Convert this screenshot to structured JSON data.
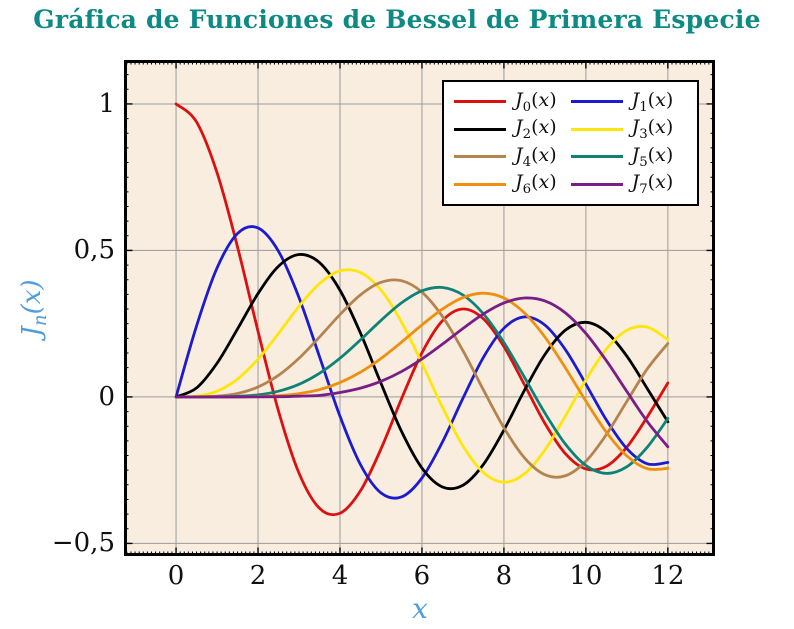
{
  "page": {
    "title": "Gráfica de Funciones de Bessel de Primera Especie"
  },
  "style": {
    "title_color": "#0E8A84",
    "axis_label_color": "#4F9EDC",
    "plot_bg": "#F8EDDF",
    "grid_color": "#9B9B9B",
    "tick_color": "#000000",
    "border_color": "#000000",
    "tick_label_color": "#111111",
    "legend_bg": "#FFFFFF",
    "legend_border": "#000000"
  },
  "chart_data": {
    "type": "line",
    "title": "Gráfica de Funciones de Bessel de Primera Especie",
    "xlabel": "x",
    "ylabel": "J_n(x)",
    "ylabel_parts": {
      "func": "J",
      "sub": "n",
      "lp": "(",
      "var": "x",
      "rp": ")"
    },
    "xlim": [
      -1.27,
      13.15
    ],
    "ylim": [
      -0.543,
      1.15
    ],
    "grid": "major",
    "legend_position": "top-right",
    "x_major_ticks": {
      "values": [
        0,
        2,
        4,
        6,
        8,
        10,
        12
      ],
      "labels": [
        "0",
        "2",
        "4",
        "6",
        "8",
        "10",
        "12"
      ]
    },
    "y_major_ticks": {
      "values": [
        1,
        0.5,
        0,
        -0.5
      ],
      "labels": [
        "1",
        "0,5",
        "0",
        "−0,5"
      ]
    },
    "x_minor_step": 0.1,
    "y_minor_step": 0.05,
    "x": [
      0,
      0.5,
      1,
      1.5,
      2,
      2.5,
      3,
      3.5,
      4,
      4.5,
      5,
      5.5,
      6,
      6.5,
      7,
      7.5,
      8,
      8.5,
      9,
      9.5,
      10,
      10.5,
      11,
      11.5,
      12
    ],
    "series": [
      {
        "name": "J0(x)",
        "label_parts": {
          "func": "J",
          "sub": "0",
          "lp": "(",
          "var": "x",
          "rp": ")"
        },
        "color": "#DC1010",
        "values": [
          1,
          0.9385,
          0.7652,
          0.5118,
          0.2239,
          -0.0484,
          -0.2601,
          -0.3801,
          -0.3971,
          -0.3205,
          -0.1776,
          -0.0068,
          0.1506,
          0.2601,
          0.3001,
          0.2663,
          0.1717,
          0.0419,
          -0.0903,
          -0.1939,
          -0.2459,
          -0.2366,
          -0.1712,
          -0.0677,
          0.0477
        ]
      },
      {
        "name": "J1(x)",
        "label_parts": {
          "func": "J",
          "sub": "1",
          "lp": "(",
          "var": "x",
          "rp": ")"
        },
        "color": "#1C1CCE",
        "values": [
          0,
          0.2423,
          0.4401,
          0.5579,
          0.5767,
          0.4971,
          0.3391,
          0.1374,
          -0.066,
          -0.2311,
          -0.3276,
          -0.3414,
          -0.2767,
          -0.1538,
          -0.0047,
          0.1352,
          0.2346,
          0.2731,
          0.2453,
          0.1613,
          0.0435,
          -0.0789,
          -0.1768,
          -0.2284,
          -0.2234
        ]
      },
      {
        "name": "J2(x)",
        "label_parts": {
          "func": "J",
          "sub": "2",
          "lp": "(",
          "var": "x",
          "rp": ")"
        },
        "color": "#000000",
        "values": [
          0,
          0.0306,
          0.1149,
          0.2321,
          0.3528,
          0.4461,
          0.4861,
          0.4586,
          0.3641,
          0.2178,
          0.0466,
          -0.1173,
          -0.2429,
          -0.3074,
          -0.3014,
          -0.2303,
          -0.113,
          0.0223,
          0.1448,
          0.2279,
          0.2546,
          0.2216,
          0.139,
          0.0279,
          -0.0849
        ]
      },
      {
        "name": "J3(x)",
        "label_parts": {
          "func": "J",
          "sub": "3",
          "lp": "(",
          "var": "x",
          "rp": ")"
        },
        "color": "#FFE60A",
        "values": [
          0,
          0.0026,
          0.0196,
          0.061,
          0.1289,
          0.2166,
          0.3091,
          0.3867,
          0.4302,
          0.4247,
          0.3648,
          0.2561,
          0.1148,
          -0.0353,
          -0.1676,
          -0.2581,
          -0.2911,
          -0.2626,
          -0.1809,
          -0.0653,
          0.0584,
          0.1633,
          0.2273,
          0.2381,
          0.1951
        ]
      },
      {
        "name": "J4(x)",
        "label_parts": {
          "func": "J",
          "sub": "4",
          "lp": "(",
          "var": "x",
          "rp": ")"
        },
        "color": "#B5834E",
        "values": [
          0,
          0.0002,
          0.0025,
          0.0118,
          0.034,
          0.0738,
          0.132,
          0.2044,
          0.2811,
          0.3484,
          0.3912,
          0.3967,
          0.3576,
          0.2748,
          0.1578,
          0.0238,
          -0.1054,
          -0.2077,
          -0.2655,
          -0.2691,
          -0.2196,
          -0.1283,
          -0.015,
          0.0962,
          0.1825
        ]
      },
      {
        "name": "J5(x)",
        "label_parts": {
          "func": "J",
          "sub": "5",
          "lp": "(",
          "var": "x",
          "rp": ")"
        },
        "color": "#0E8276",
        "values": [
          0,
          0,
          0.0002,
          0.0018,
          0.007,
          0.0195,
          0.043,
          0.0804,
          0.1321,
          0.1947,
          0.2611,
          0.3209,
          0.3621,
          0.3736,
          0.3479,
          0.2835,
          0.1858,
          0.0671,
          -0.055,
          -0.1613,
          -0.2341,
          -0.2611,
          -0.2383,
          -0.1712,
          -0.0735
        ]
      },
      {
        "name": "J6(x)",
        "label_parts": {
          "func": "J",
          "sub": "6",
          "lp": "(",
          "var": "x",
          "rp": ")"
        },
        "color": "#EF8F10",
        "values": [
          0,
          0,
          0,
          0.0002,
          0.0012,
          0.0042,
          0.0114,
          0.025,
          0.0491,
          0.0843,
          0.131,
          0.1868,
          0.2458,
          0.2999,
          0.3392,
          0.3541,
          0.3376,
          0.2867,
          0.2043,
          0.0993,
          -0.0145,
          -0.1204,
          -0.2016,
          -0.245,
          -0.2437
        ]
      },
      {
        "name": "J7(x)",
        "label_parts": {
          "func": "J",
          "sub": "7",
          "lp": "(",
          "var": "x",
          "rp": ")"
        },
        "color": "#7A1E87",
        "values": [
          0,
          0,
          0,
          0,
          0.0002,
          0.0007,
          0.0025,
          0.0053,
          0.0152,
          0.0301,
          0.0534,
          0.0866,
          0.1296,
          0.18,
          0.2336,
          0.2832,
          0.3206,
          0.3376,
          0.3275,
          0.2868,
          0.2167,
          0.1235,
          0.0184,
          -0.0845,
          -0.1703
        ]
      }
    ]
  }
}
